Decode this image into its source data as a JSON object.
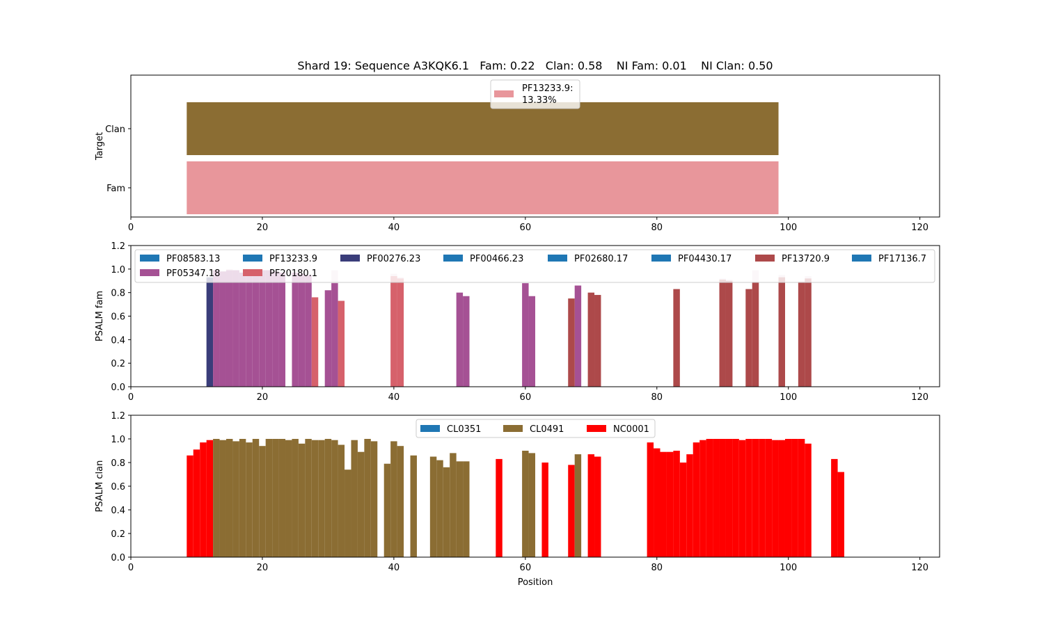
{
  "title": "Shard 19: Sequence A3KQK6.1   Fam: 0.22   Clan: 0.58    NI Fam: 0.01    NI Clan: 0.50",
  "colors": {
    "tab_blue": "#1f77b4",
    "clan_brown": "#8b6d33",
    "fam_pink": "#e8969b",
    "navy": "#3a3d7a",
    "purple": "#a55194",
    "salmon": "#d6616b",
    "brick": "#ad494a",
    "red": "#ff0000",
    "ghost": "#ead8e2"
  },
  "chart_data": [
    {
      "type": "bar",
      "orientation": "horizontal",
      "ylabel": "Target",
      "xlim": [
        0,
        123
      ],
      "xticks": [
        0,
        20,
        40,
        60,
        80,
        100,
        120
      ],
      "categories": [
        "Fam",
        "Clan"
      ],
      "legend": {
        "placement": "top-center",
        "entries": [
          {
            "label": "PF13233.9:",
            "label2": " 13.33%",
            "color": "#e8969b"
          }
        ]
      },
      "bars": [
        {
          "category": "Clan",
          "start": 8.5,
          "end": 98.5,
          "color": "#8b6d33"
        },
        {
          "category": "Fam",
          "start": 8.5,
          "end": 98.5,
          "color": "#e8969b"
        }
      ]
    },
    {
      "type": "bar",
      "ylabel": "PSALM fam",
      "xlim": [
        0,
        123
      ],
      "ylim": [
        0,
        1.2
      ],
      "xticks": [
        0,
        20,
        40,
        60,
        80,
        100,
        120
      ],
      "yticks": [
        0.0,
        0.2,
        0.4,
        0.6,
        0.8,
        1.0,
        1.2
      ],
      "legend": {
        "placement": "top",
        "entries": [
          {
            "label": "PF08583.13",
            "color": "#1f77b4"
          },
          {
            "label": "PF13233.9",
            "color": "#1f77b4"
          },
          {
            "label": "PF00276.23",
            "color": "#3a3d7a"
          },
          {
            "label": "PF00466.23",
            "color": "#1f77b4"
          },
          {
            "label": "PF02680.17",
            "color": "#1f77b4"
          },
          {
            "label": "PF04430.17",
            "color": "#1f77b4"
          },
          {
            "label": "PF13720.9",
            "color": "#ad494a"
          },
          {
            "label": "PF17136.7",
            "color": "#1f77b4"
          },
          {
            "label": "PF05347.18",
            "color": "#a55194"
          },
          {
            "label": "PF20180.1",
            "color": "#d6616b"
          }
        ]
      },
      "series": [
        {
          "name": "PF00276.23",
          "color": "#3a3d7a",
          "x": [
            12
          ],
          "values": [
            0.93
          ]
        },
        {
          "name": "PF05347.18",
          "color": "#a55194",
          "x": [
            13,
            14,
            15,
            16,
            17,
            18,
            19,
            20,
            21,
            22,
            23,
            25,
            26,
            27,
            30,
            31,
            50,
            51,
            60,
            61,
            68
          ],
          "values": [
            0.99,
            0.98,
            0.99,
            0.99,
            0.97,
            0.98,
            0.99,
            0.99,
            0.99,
            0.98,
            0.97,
            0.97,
            0.96,
            0.95,
            0.82,
            0.88,
            0.8,
            0.77,
            0.88,
            0.77,
            0.86
          ]
        },
        {
          "name": "PF20180.1",
          "color": "#d6616b",
          "x": [
            28,
            32,
            40,
            41
          ],
          "values": [
            0.76,
            0.73,
            0.94,
            0.92
          ]
        },
        {
          "name": "PF13720.9",
          "color": "#ad494a",
          "x": [
            67,
            70,
            71,
            83,
            90,
            91,
            94,
            95,
            99,
            102,
            103
          ],
          "values": [
            0.75,
            0.8,
            0.78,
            0.83,
            0.91,
            0.9,
            0.83,
            0.89,
            0.93,
            0.89,
            0.92
          ]
        },
        {
          "name": "",
          "color": "#ead8e2",
          "x": [
            15,
            16,
            31,
            40,
            41,
            90,
            91,
            95,
            99,
            102,
            103
          ],
          "values": [
            1.0,
            0.99,
            0.99,
            0.96,
            0.93,
            0.92,
            0.91,
            0.99,
            0.95,
            0.9,
            0.94
          ]
        }
      ]
    },
    {
      "type": "bar",
      "ylabel": "PSALM clan",
      "xlabel": "Position",
      "xlim": [
        0,
        123
      ],
      "ylim": [
        0,
        1.2
      ],
      "xticks": [
        0,
        20,
        40,
        60,
        80,
        100,
        120
      ],
      "yticks": [
        0.0,
        0.2,
        0.4,
        0.6,
        0.8,
        1.0,
        1.2
      ],
      "legend": {
        "placement": "top-center",
        "entries": [
          {
            "label": "CL0351",
            "color": "#1f77b4"
          },
          {
            "label": "CL0491",
            "color": "#8b6d33"
          },
          {
            "label": "NC0001",
            "color": "#ff0000"
          }
        ]
      },
      "series": [
        {
          "name": "NC0001",
          "color": "#ff0000",
          "x": [
            9,
            10,
            11,
            12,
            56,
            63,
            67,
            70,
            71,
            79,
            80,
            81,
            82,
            83,
            84,
            85,
            86,
            87,
            88,
            89,
            90,
            91,
            92,
            93,
            94,
            95,
            96,
            97,
            98,
            99,
            100,
            101,
            102,
            103,
            107,
            108
          ],
          "values": [
            0.86,
            0.91,
            0.97,
            0.99,
            0.83,
            0.8,
            0.78,
            0.87,
            0.85,
            0.97,
            0.92,
            0.89,
            0.89,
            0.9,
            0.8,
            0.87,
            0.97,
            0.99,
            1.0,
            1.0,
            1.0,
            1.0,
            1.0,
            0.99,
            1.0,
            1.0,
            1.0,
            1.0,
            0.99,
            0.99,
            1.0,
            1.0,
            1.0,
            0.96,
            0.83,
            0.72
          ]
        },
        {
          "name": "CL0491",
          "color": "#8b6d33",
          "x": [
            13,
            14,
            15,
            16,
            17,
            18,
            19,
            20,
            21,
            22,
            23,
            24,
            25,
            26,
            27,
            28,
            29,
            30,
            31,
            32,
            33,
            34,
            35,
            36,
            37,
            39,
            40,
            41,
            43,
            46,
            47,
            48,
            49,
            50,
            51,
            60,
            61,
            68
          ],
          "values": [
            1.0,
            0.99,
            1.0,
            0.98,
            1.0,
            0.97,
            1.0,
            0.94,
            1.0,
            1.0,
            1.0,
            0.99,
            1.0,
            0.96,
            1.0,
            0.99,
            0.99,
            1.0,
            0.99,
            0.95,
            0.74,
            0.99,
            0.89,
            1.0,
            0.98,
            0.79,
            0.98,
            0.94,
            0.86,
            0.85,
            0.82,
            0.76,
            0.88,
            0.81,
            0.81,
            0.9,
            0.88,
            0.87
          ]
        }
      ]
    }
  ]
}
